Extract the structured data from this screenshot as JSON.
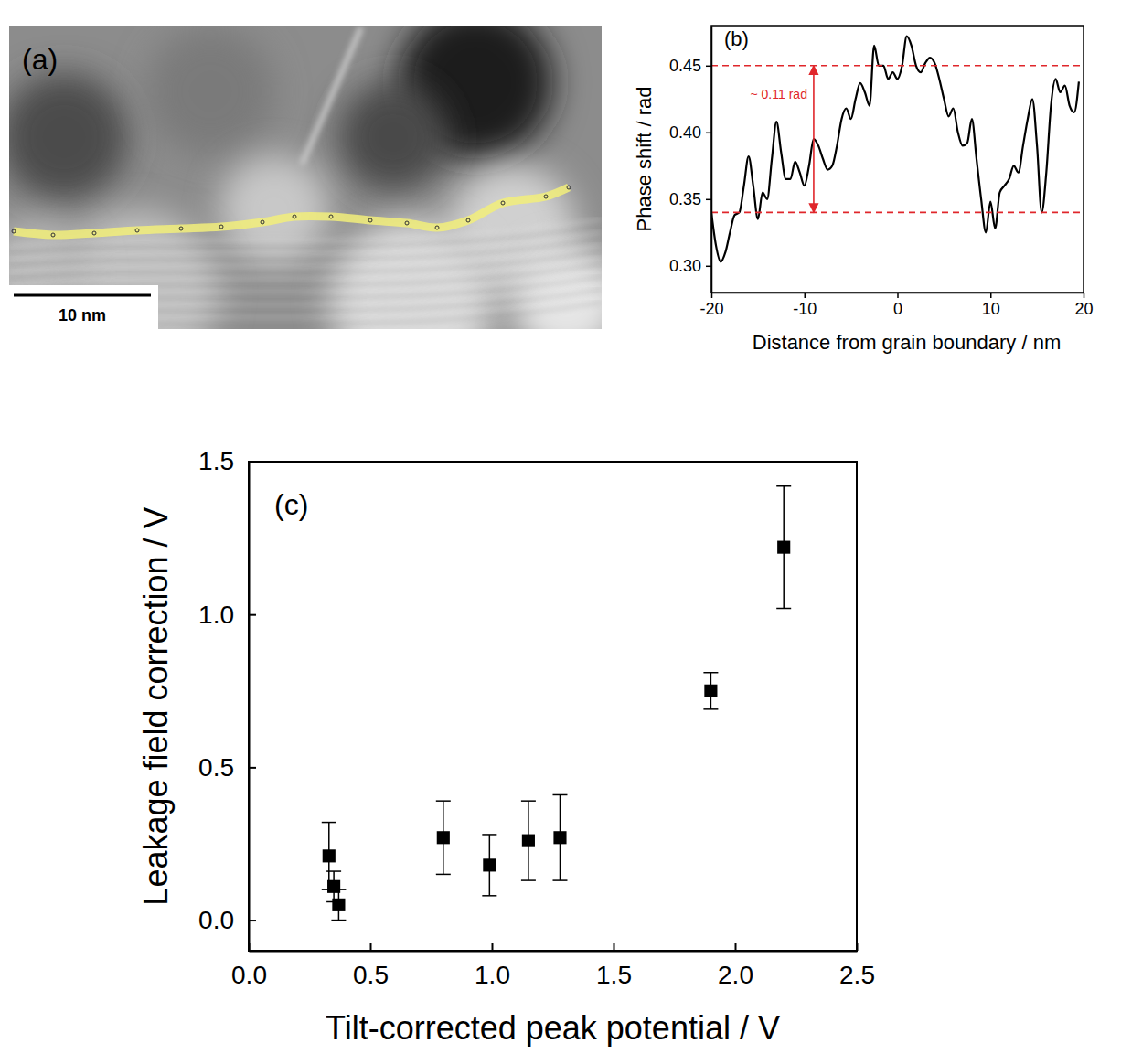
{
  "chart_data": [
    {
      "type": "image",
      "panel_label": "(a)",
      "scale_bar": "10 nm"
    },
    {
      "type": "line",
      "panel_label": "(b)",
      "x_label": "Distance from grain boundary / nm",
      "y_label": "Phase shift / rad",
      "xlim": [
        -20,
        20
      ],
      "ylim": [
        0.28,
        0.48
      ],
      "xticks": [
        -20,
        -10,
        0,
        10,
        20
      ],
      "yticks": [
        {
          "value": 0.3,
          "label": "0.30"
        },
        0.35,
        {
          "value": 0.4,
          "label": "0.40"
        },
        0.45
      ],
      "color": "#000000",
      "x": [
        -20,
        -19.5,
        -19,
        -18.5,
        -18,
        -17.5,
        -17,
        -16.5,
        -16,
        -15.5,
        -15,
        -14.5,
        -14,
        -13.5,
        -13,
        -12.5,
        -12,
        -11.5,
        -11,
        -10.5,
        -10,
        -9.5,
        -9,
        -8.5,
        -8,
        -7.5,
        -7,
        -6.5,
        -6,
        -5.5,
        -5,
        -4.5,
        -4,
        -3.5,
        -3,
        -2.5,
        -2,
        -1.5,
        -1,
        -0.5,
        0,
        0.5,
        1,
        1.5,
        2,
        2.5,
        3,
        3.5,
        4,
        4.5,
        5,
        5.5,
        6,
        6.5,
        7,
        7.5,
        8,
        8.5,
        9,
        9.5,
        10,
        10.5,
        11,
        11.5,
        12,
        12.5,
        13,
        13.5,
        14,
        14.5,
        15,
        15.5,
        16,
        16.5,
        17,
        17.5,
        18,
        18.5,
        19,
        19.5
      ],
      "values": [
        0.34,
        0.315,
        0.303,
        0.31,
        0.325,
        0.338,
        0.34,
        0.36,
        0.382,
        0.36,
        0.335,
        0.355,
        0.35,
        0.38,
        0.408,
        0.385,
        0.365,
        0.365,
        0.378,
        0.37,
        0.36,
        0.375,
        0.395,
        0.39,
        0.38,
        0.372,
        0.375,
        0.39,
        0.41,
        0.418,
        0.41,
        0.425,
        0.437,
        0.43,
        0.42,
        0.465,
        0.45,
        0.45,
        0.44,
        0.445,
        0.44,
        0.45,
        0.472,
        0.465,
        0.45,
        0.445,
        0.452,
        0.456,
        0.452,
        0.44,
        0.425,
        0.412,
        0.418,
        0.4,
        0.39,
        0.392,
        0.41,
        0.38,
        0.35,
        0.325,
        0.348,
        0.328,
        0.355,
        0.36,
        0.365,
        0.375,
        0.37,
        0.39,
        0.41,
        0.425,
        0.39,
        0.34,
        0.37,
        0.42,
        0.44,
        0.43,
        0.435,
        0.42,
        0.415,
        0.438
      ],
      "annotations": [
        {
          "text": "~ 0.11 rad",
          "x": -9,
          "hlines": [
            0.34,
            0.45
          ],
          "color": "#e0262b"
        }
      ]
    },
    {
      "type": "scatter",
      "panel_label": "(c)",
      "x_label": "Tilt-corrected peak potential / V",
      "y_label": "Leakage field correction / V",
      "xlim": [
        0,
        2.5
      ],
      "ylim": [
        -0.1,
        1.5
      ],
      "xticks": [
        {
          "value": 0,
          "label": "0.0"
        },
        0.5,
        {
          "value": 1,
          "label": "1.0"
        },
        1.5,
        {
          "value": 2,
          "label": "2.0"
        },
        2.5
      ],
      "yticks": [
        {
          "value": 0,
          "label": "0.0"
        },
        0.5,
        {
          "value": 1,
          "label": "1.0"
        },
        1.5
      ],
      "color": "#000000",
      "marker": "square",
      "x": [
        0.33,
        0.35,
        0.37,
        0.8,
        0.99,
        1.15,
        1.28,
        1.9,
        2.2
      ],
      "values": [
        0.21,
        0.11,
        0.05,
        0.27,
        0.18,
        0.26,
        0.27,
        0.75,
        1.22
      ],
      "errors": [
        0.11,
        0.05,
        0.05,
        0.12,
        0.1,
        0.13,
        0.14,
        0.06,
        0.2
      ]
    }
  ]
}
